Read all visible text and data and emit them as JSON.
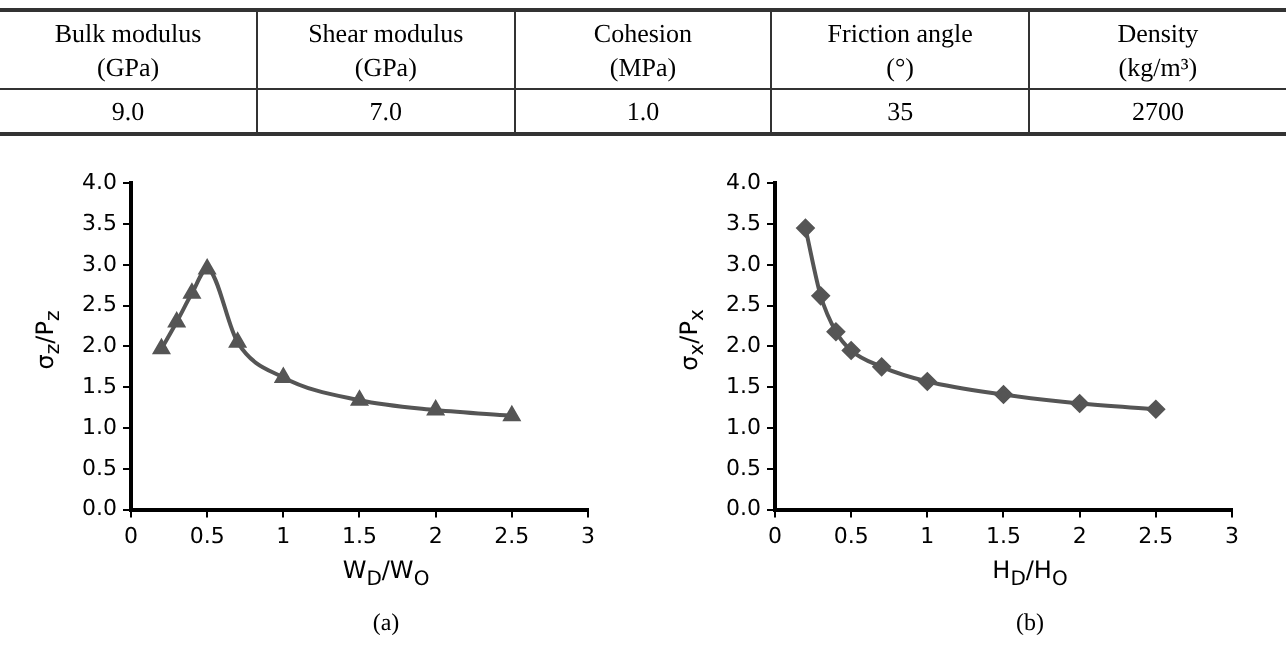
{
  "chart_data": [
    {
      "type": "other",
      "categories": [
        "Bulk modulus\n(GPa)",
        "Shear modulus\n(GPa)",
        "Cohesion\n(MPa)",
        "Friction angle\n(°)",
        "Density\n(kg/m³)"
      ],
      "value_labels": [
        "9.0",
        "7.0",
        "1.0",
        "35",
        "2700"
      ]
    },
    {
      "type": "line",
      "x": [
        0.2,
        0.3,
        0.4,
        0.5,
        0.7,
        1,
        1.5,
        2,
        2.5
      ],
      "series": [
        {
          "color": "#555555",
          "values": [
            1.97,
            2.3,
            2.65,
            2.95,
            2.05,
            1.62,
            1.34,
            1.22,
            1.15
          ]
        }
      ],
      "xlim": [
        0,
        3
      ],
      "xticks": [
        0,
        0.5,
        1,
        1.5,
        2,
        2.5,
        3
      ],
      "ylim": [
        0,
        4
      ],
      "yticks": [
        {
          "value": 0,
          "label": "0.0"
        },
        {
          "value": 0.5,
          "label": "0.5"
        },
        {
          "value": 1,
          "label": "1.0"
        },
        {
          "value": 1.5,
          "label": "1.5"
        },
        {
          "value": 2,
          "label": "2.0"
        },
        {
          "value": 2.5,
          "label": "2.5"
        },
        {
          "value": 3,
          "label": "3.0"
        },
        {
          "value": 3.5,
          "label": "3.5"
        },
        {
          "value": 4,
          "label": "4.0"
        }
      ],
      "xlabel": "W$_{D}$/W$_{O}$",
      "ylabel": "σ$_{z}$/P$_{z}$",
      "marker": "triangle",
      "annotations": [
        "(a)"
      ]
    },
    {
      "type": "line",
      "x": [
        0.2,
        0.3,
        0.4,
        0.5,
        0.7,
        1,
        1.5,
        2,
        2.5
      ],
      "series": [
        {
          "color": "#555555",
          "values": [
            3.45,
            2.62,
            2.18,
            1.95,
            1.75,
            1.57,
            1.41,
            1.3,
            1.23
          ]
        }
      ],
      "xlim": [
        0,
        3
      ],
      "xticks": [
        0,
        0.5,
        1,
        1.5,
        2,
        2.5,
        3
      ],
      "ylim": [
        0,
        4
      ],
      "yticks": [
        {
          "value": 0,
          "label": "0.0"
        },
        {
          "value": 0.5,
          "label": "0.5"
        },
        {
          "value": 1,
          "label": "1.0"
        },
        {
          "value": 1.5,
          "label": "1.5"
        },
        {
          "value": 2,
          "label": "2.0"
        },
        {
          "value": 2.5,
          "label": "2.5"
        },
        {
          "value": 3,
          "label": "3.0"
        },
        {
          "value": 3.5,
          "label": "3.5"
        },
        {
          "value": 4,
          "label": "4.0"
        }
      ],
      "xlabel": "H$_{D}$/H$_{O}$",
      "ylabel": "σ$_{x}$/P$_{x}$",
      "marker": "diamond",
      "annotations": [
        "(b)"
      ]
    }
  ]
}
